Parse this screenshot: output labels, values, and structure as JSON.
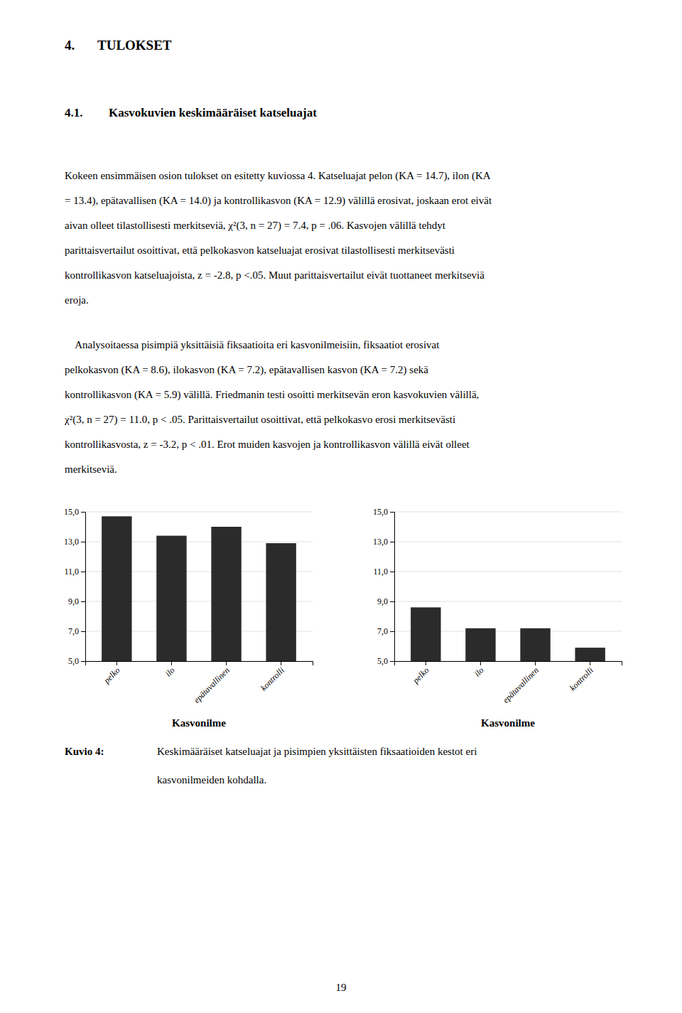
{
  "page_title": {
    "number": "4.",
    "text": "TULOKSET"
  },
  "section": {
    "number": "4.1.",
    "text": "Kasvokuvien keskimääräiset katseluajat"
  },
  "paragraphs": [
    [
      "Kokeen ensimmäisen osion tulokset on esitetty kuviossa 4. Katseluajat pelon (KA = 14.7), ilon (KA",
      "= 13.4), epätavallisen (KA = 14.0) ja kontrollikasvon (KA = 12.9) välillä erosivat, joskaan erot eivät",
      "aivan olleet tilastollisesti merkitseviä, χ²(3, n = 27) = 7.4, p = .06. Kasvojen välillä tehdyt",
      "parittaisvertailut osoittivat, että pelkokasvon katseluajat erosivat tilastollisesti merkitsevästi",
      "kontrollikasvon katseluajoista, z = -2.8, p <.05. Muut parittaisvertailut eivät tuottaneet merkitseviä",
      "eroja."
    ],
    [
      "    Analysoitaessa pisimpiä yksittäisiä fiksaatioita eri kasvonilmeisiin, fiksaatiot erosivat",
      "pelkokasvon (KA = 8.6), ilokasvon (KA = 7.2), epätavallisen kasvon (KA = 7.2) sekä",
      "kontrollikasvon (KA = 5.9) välillä. Friedmanin testi osoitti merkitsevän eron kasvokuvien välillä,",
      "χ²(3, n = 27) = 11.0, p < .05. Parittaisvertailut osoittivat, että pelkokasvo erosi merkitsevästi",
      "kontrollikasvosta, z = -3.2, p < .01. Erot muiden kasvojen ja kontrollikasvon välillä eivät olleet",
      "merkitseviä."
    ]
  ],
  "chart_data": [
    {
      "type": "bar",
      "categories": [
        "pelko",
        "ilo",
        "epätavallinen",
        "kontrolli"
      ],
      "values": [
        14.7,
        13.4,
        14.0,
        12.9
      ],
      "color": "#2b2b2b",
      "x_label": "Kasvonilme",
      "ylim": [
        5.0,
        15.0
      ],
      "yticks": [
        {
          "value": 5.0,
          "label": "5,0"
        },
        {
          "value": 7.0,
          "label": "7,0"
        },
        {
          "value": 9.0,
          "label": "9,0"
        },
        {
          "value": 11.0,
          "label": "11,0"
        },
        {
          "value": 13.0,
          "label": "13,0"
        },
        {
          "value": 15.0,
          "label": "15,0"
        }
      ],
      "grid": true
    },
    {
      "type": "bar",
      "categories": [
        "pelko",
        "ilo",
        "epätavallinen",
        "kontrolli"
      ],
      "values": [
        8.6,
        7.2,
        7.2,
        5.9
      ],
      "color": "#2b2b2b",
      "x_label": "Kasvonilme",
      "ylim": [
        5.0,
        15.0
      ],
      "yticks": [
        {
          "value": 5.0,
          "label": "5,0"
        },
        {
          "value": 7.0,
          "label": "7,0"
        },
        {
          "value": 9.0,
          "label": "9,0"
        },
        {
          "value": 11.0,
          "label": "11,0"
        },
        {
          "value": 13.0,
          "label": "13,0"
        },
        {
          "value": 15.0,
          "label": "15,0"
        }
      ],
      "grid": true
    }
  ],
  "caption": {
    "label": "Kuvio 4:",
    "lines": [
      "Keskimääräiset katseluajat ja pisimpien yksittäisten fiksaatioiden kestot eri",
      "kasvonilmeiden kohdalla."
    ]
  },
  "page_number": "19"
}
